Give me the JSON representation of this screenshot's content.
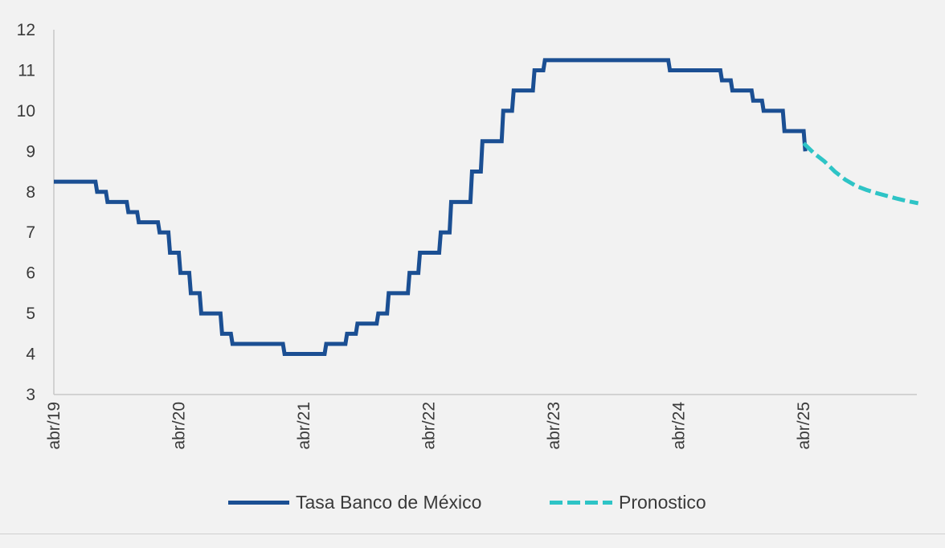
{
  "chart_data": {
    "type": "line",
    "title": "",
    "xlabel": "",
    "ylabel": "",
    "ylim": [
      3,
      12
    ],
    "yticks": [
      "3",
      "4",
      "5",
      "6",
      "7",
      "8",
      "9",
      "10",
      "11",
      "12"
    ],
    "xlim": [
      "2019-04",
      "2026-03"
    ],
    "xticks": [
      {
        "date": "2019-04",
        "label": "abr/19"
      },
      {
        "date": "2020-04",
        "label": "abr/20"
      },
      {
        "date": "2021-04",
        "label": "abr/21"
      },
      {
        "date": "2022-04",
        "label": "abr/22"
      },
      {
        "date": "2023-04",
        "label": "abr/23"
      },
      {
        "date": "2024-04",
        "label": "abr/24"
      },
      {
        "date": "2025-04",
        "label": "abr/25"
      }
    ],
    "grid": false,
    "legend_position": "bottom",
    "series": [
      {
        "name": "Tasa Banco de México",
        "color": "#1b4f93",
        "style": "solid-step",
        "points": [
          [
            "2019-04",
            8.25
          ],
          [
            "2019-08",
            8.0
          ],
          [
            "2019-09",
            7.75
          ],
          [
            "2019-11",
            7.5
          ],
          [
            "2019-12",
            7.25
          ],
          [
            "2020-02",
            7.0
          ],
          [
            "2020-03",
            6.5
          ],
          [
            "2020-04",
            6.0
          ],
          [
            "2020-05",
            5.5
          ],
          [
            "2020-06",
            5.0
          ],
          [
            "2020-08",
            4.5
          ],
          [
            "2020-09",
            4.25
          ],
          [
            "2021-02",
            4.0
          ],
          [
            "2021-06",
            4.25
          ],
          [
            "2021-08",
            4.5
          ],
          [
            "2021-09",
            4.75
          ],
          [
            "2021-11",
            5.0
          ],
          [
            "2021-12",
            5.5
          ],
          [
            "2022-02",
            6.0
          ],
          [
            "2022-03",
            6.5
          ],
          [
            "2022-05",
            7.0
          ],
          [
            "2022-06",
            7.75
          ],
          [
            "2022-08",
            8.5
          ],
          [
            "2022-09",
            9.25
          ],
          [
            "2022-11",
            10.0
          ],
          [
            "2022-12",
            10.5
          ],
          [
            "2023-02",
            11.0
          ],
          [
            "2023-03",
            11.25
          ],
          [
            "2024-03",
            11.0
          ],
          [
            "2024-08",
            10.75
          ],
          [
            "2024-09",
            10.5
          ],
          [
            "2024-11",
            10.25
          ],
          [
            "2024-12",
            10.0
          ],
          [
            "2025-02",
            9.5
          ],
          [
            "2025-04",
            9.0
          ]
        ]
      },
      {
        "name": "Pronostico",
        "color": "#2ec4c6",
        "style": "dashed",
        "points": [
          [
            "2025-04",
            9.2
          ],
          [
            "2025-05",
            8.95
          ],
          [
            "2025-06",
            8.75
          ],
          [
            "2025-07",
            8.5
          ],
          [
            "2025-08",
            8.3
          ],
          [
            "2025-09",
            8.15
          ],
          [
            "2025-10",
            8.05
          ],
          [
            "2025-11",
            7.97
          ],
          [
            "2025-12",
            7.9
          ],
          [
            "2026-01",
            7.83
          ],
          [
            "2026-02",
            7.77
          ],
          [
            "2026-03",
            7.72
          ]
        ]
      }
    ]
  }
}
